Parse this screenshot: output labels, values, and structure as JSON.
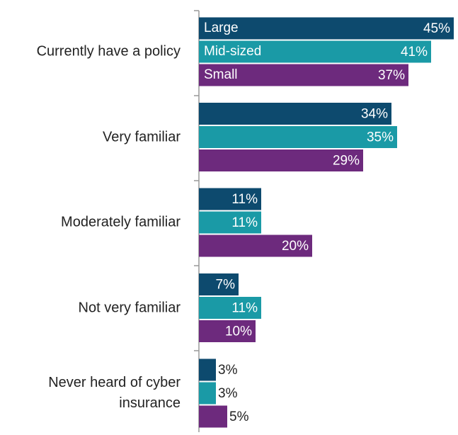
{
  "chart_data": {
    "type": "bar",
    "orientation": "horizontal",
    "categories": [
      "Currently have a policy",
      "Very familiar",
      "Moderately familiar",
      "Not very familiar",
      "Never heard of cyber insurance"
    ],
    "series": [
      {
        "name": "Large",
        "color": "#0d4a6e",
        "values": [
          45,
          34,
          11,
          7,
          3
        ],
        "value_labels": [
          "45%",
          "34%",
          "11%",
          "7%",
          "3%"
        ]
      },
      {
        "name": "Mid-sized",
        "color": "#1a9aa6",
        "values": [
          41,
          35,
          11,
          11,
          3
        ],
        "value_labels": [
          "41%",
          "35%",
          "11%",
          "11%",
          "3%"
        ]
      },
      {
        "name": "Small",
        "color": "#6d2a7d",
        "values": [
          37,
          29,
          20,
          10,
          5
        ],
        "value_labels": [
          "37%",
          "29%",
          "20%",
          "10%",
          "5%"
        ]
      }
    ]
  }
}
